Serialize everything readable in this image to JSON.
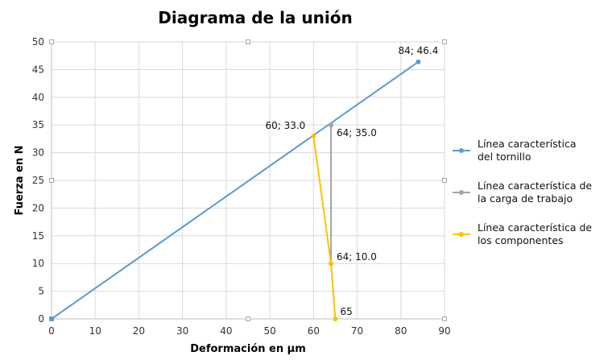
{
  "chart_data": {
    "type": "line",
    "title": "Diagrama de la unión",
    "xlabel": "Deformación en µm",
    "ylabel": "Fuerza en N",
    "xlim": [
      0,
      90
    ],
    "ylim": [
      0,
      50
    ],
    "xticks": [
      0,
      10,
      20,
      30,
      40,
      50,
      60,
      70,
      80,
      90
    ],
    "yticks": [
      0,
      5,
      10,
      15,
      20,
      25,
      30,
      35,
      40,
      45,
      50
    ],
    "grid": true,
    "legend_position": "right",
    "series": [
      {
        "name": "Línea característica del tornillo",
        "legend_lines": [
          "Línea característica",
          "del tornillo"
        ],
        "color": "#5B9BD5",
        "points": [
          [
            0,
            0
          ],
          [
            84,
            46.4
          ]
        ]
      },
      {
        "name": "Línea característica de la carga de trabajo",
        "legend_lines": [
          "Línea característica de",
          "la carga de trabajo"
        ],
        "color": "#A5A5A5",
        "points": [
          [
            64,
            10.0
          ],
          [
            64,
            35.0
          ]
        ]
      },
      {
        "name": "Línea característica de los componentes",
        "legend_lines": [
          "Línea característica de",
          "los componentes"
        ],
        "color": "#FFC000",
        "points": [
          [
            60,
            33.0
          ],
          [
            64,
            10.0
          ],
          [
            65,
            0
          ]
        ]
      }
    ],
    "annotations": [
      {
        "text": "84; 46.4",
        "x": 84,
        "y": 46.4,
        "anchor": "above"
      },
      {
        "text": "64; 35.0",
        "x": 64,
        "y": 35.0,
        "anchor": "below-right"
      },
      {
        "text": "60; 33.0",
        "x": 60,
        "y": 33.0,
        "anchor": "left"
      },
      {
        "text": "64; 10.0",
        "x": 64,
        "y": 10.0,
        "anchor": "right"
      },
      {
        "text": "65",
        "x": 65,
        "y": 0,
        "anchor": "above-right"
      }
    ]
  }
}
